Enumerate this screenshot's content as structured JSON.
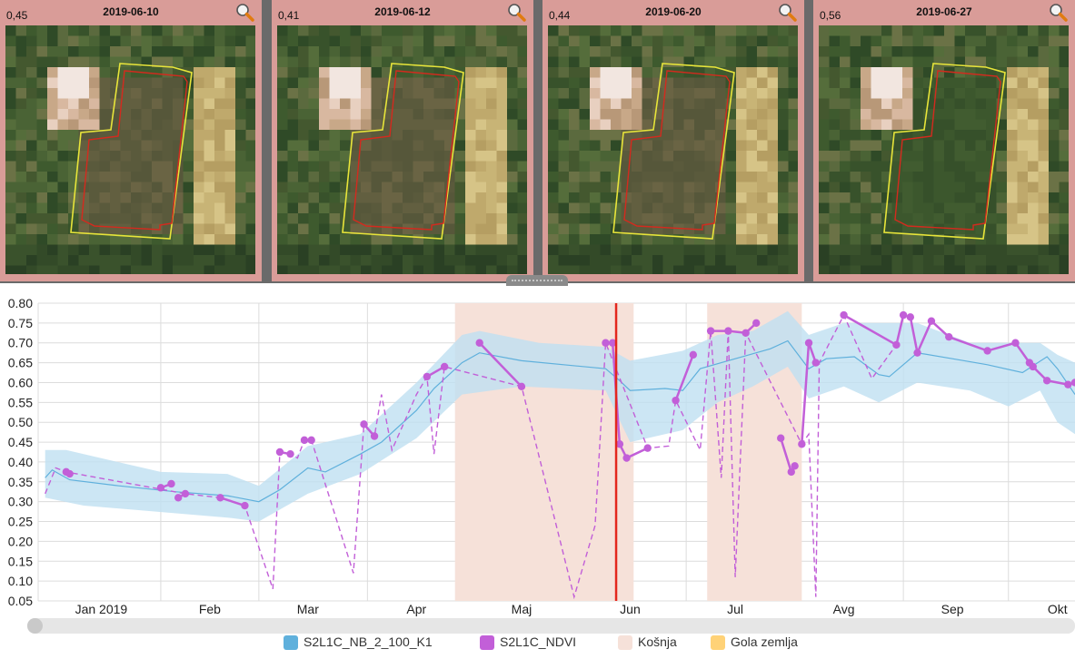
{
  "thumbnails": [
    {
      "value": "0,45",
      "date": "2019-06-10"
    },
    {
      "value": "0,41",
      "date": "2019-06-12"
    },
    {
      "value": "0,44",
      "date": "2019-06-20"
    },
    {
      "value": "0,56",
      "date": "2019-06-27"
    }
  ],
  "colors": {
    "band": "#bfe0f1",
    "mean_line": "#5fb0dc",
    "ndvi": "#c25fd8",
    "kosnja": "#f6e1d9",
    "gola_zemlja": "#ffd277",
    "selected_date_line": "#e3271e",
    "thumb_frame": "#d99c98"
  },
  "legend": [
    {
      "label": "S2L1C_NB_2_100_K1",
      "color": "#5fb0dc"
    },
    {
      "label": "S2L1C_NDVI",
      "color": "#c25fd8"
    },
    {
      "label": "Košnja",
      "color": "#f6e1d9"
    },
    {
      "label": "Gola zemlja",
      "color": "#ffd277"
    }
  ],
  "chart_data": {
    "type": "line",
    "x_axis": {
      "type": "date",
      "min": "2018-12-28",
      "max": "2019-10-20",
      "tick_labels": [
        {
          "label": "Jan 2019",
          "date": "2019-01-15"
        },
        {
          "label": "Feb",
          "date": "2019-02-15"
        },
        {
          "label": "Mar",
          "date": "2019-03-15"
        },
        {
          "label": "Apr",
          "date": "2019-04-15"
        },
        {
          "label": "Maj",
          "date": "2019-05-15"
        },
        {
          "label": "Jun",
          "date": "2019-06-15"
        },
        {
          "label": "Jul",
          "date": "2019-07-15"
        },
        {
          "label": "Avg",
          "date": "2019-08-15"
        },
        {
          "label": "Sep",
          "date": "2019-09-15"
        },
        {
          "label": "Okt",
          "date": "2019-10-15"
        }
      ],
      "gridlines": [
        "2019-02-01",
        "2019-03-01",
        "2019-04-01",
        "2019-05-01",
        "2019-06-01",
        "2019-07-01",
        "2019-08-01",
        "2019-09-01",
        "2019-10-01"
      ]
    },
    "y_axis": {
      "min": 0.05,
      "max": 0.8,
      "step": 0.05,
      "decimals": 2
    },
    "grid": true,
    "legend_position": "bottom",
    "selected_date": "2019-06-11",
    "kosnja_periods": [
      [
        "2019-04-26",
        "2019-06-16"
      ],
      [
        "2019-07-07",
        "2019-08-03"
      ]
    ],
    "mean_series": [
      [
        "2018-12-30",
        0.36
      ],
      [
        "2019-01-01",
        0.38
      ],
      [
        "2019-01-06",
        0.355
      ],
      [
        "2019-01-20",
        0.34
      ],
      [
        "2019-02-05",
        0.325
      ],
      [
        "2019-02-20",
        0.315
      ],
      [
        "2019-03-01",
        0.3
      ],
      [
        "2019-03-07",
        0.33
      ],
      [
        "2019-03-15",
        0.385
      ],
      [
        "2019-03-20",
        0.375
      ],
      [
        "2019-03-30",
        0.42
      ],
      [
        "2019-04-05",
        0.45
      ],
      [
        "2019-04-15",
        0.53
      ],
      [
        "2019-04-20",
        0.585
      ],
      [
        "2019-04-28",
        0.65
      ],
      [
        "2019-05-03",
        0.675
      ],
      [
        "2019-05-15",
        0.655
      ],
      [
        "2019-06-08",
        0.635
      ],
      [
        "2019-06-12",
        0.605
      ],
      [
        "2019-06-15",
        0.58
      ],
      [
        "2019-06-25",
        0.585
      ],
      [
        "2019-06-30",
        0.58
      ],
      [
        "2019-07-05",
        0.635
      ],
      [
        "2019-07-15",
        0.66
      ],
      [
        "2019-07-25",
        0.685
      ],
      [
        "2019-07-30",
        0.705
      ],
      [
        "2019-08-05",
        0.635
      ],
      [
        "2019-08-10",
        0.66
      ],
      [
        "2019-08-18",
        0.665
      ],
      [
        "2019-08-25",
        0.62
      ],
      [
        "2019-08-28",
        0.615
      ],
      [
        "2019-09-05",
        0.675
      ],
      [
        "2019-09-15",
        0.66
      ],
      [
        "2019-09-25",
        0.645
      ],
      [
        "2019-10-05",
        0.625
      ],
      [
        "2019-10-12",
        0.665
      ],
      [
        "2019-10-15",
        0.635
      ],
      [
        "2019-10-20",
        0.57
      ]
    ],
    "band_upper": [
      [
        "2018-12-30",
        0.43
      ],
      [
        "2019-01-05",
        0.43
      ],
      [
        "2019-02-01",
        0.375
      ],
      [
        "2019-02-20",
        0.37
      ],
      [
        "2019-03-01",
        0.34
      ],
      [
        "2019-03-15",
        0.44
      ],
      [
        "2019-03-20",
        0.45
      ],
      [
        "2019-03-30",
        0.47
      ],
      [
        "2019-04-15",
        0.6
      ],
      [
        "2019-04-28",
        0.72
      ],
      [
        "2019-05-03",
        0.73
      ],
      [
        "2019-05-20",
        0.7
      ],
      [
        "2019-06-08",
        0.69
      ],
      [
        "2019-06-15",
        0.655
      ],
      [
        "2019-06-30",
        0.68
      ],
      [
        "2019-07-10",
        0.72
      ],
      [
        "2019-07-20",
        0.73
      ],
      [
        "2019-07-30",
        0.78
      ],
      [
        "2019-08-05",
        0.72
      ],
      [
        "2019-08-15",
        0.75
      ],
      [
        "2019-08-25",
        0.75
      ],
      [
        "2019-09-05",
        0.75
      ],
      [
        "2019-09-20",
        0.7
      ],
      [
        "2019-10-10",
        0.7
      ],
      [
        "2019-10-15",
        0.67
      ],
      [
        "2019-10-20",
        0.65
      ]
    ],
    "band_lower": [
      [
        "2018-12-30",
        0.31
      ],
      [
        "2019-01-10",
        0.29
      ],
      [
        "2019-02-20",
        0.26
      ],
      [
        "2019-03-01",
        0.25
      ],
      [
        "2019-03-15",
        0.32
      ],
      [
        "2019-03-30",
        0.37
      ],
      [
        "2019-04-15",
        0.46
      ],
      [
        "2019-04-28",
        0.57
      ],
      [
        "2019-05-15",
        0.59
      ],
      [
        "2019-06-08",
        0.58
      ],
      [
        "2019-06-15",
        0.45
      ],
      [
        "2019-06-25",
        0.47
      ],
      [
        "2019-06-30",
        0.48
      ],
      [
        "2019-07-10",
        0.55
      ],
      [
        "2019-07-20",
        0.59
      ],
      [
        "2019-07-30",
        0.64
      ],
      [
        "2019-08-05",
        0.56
      ],
      [
        "2019-08-15",
        0.59
      ],
      [
        "2019-08-25",
        0.55
      ],
      [
        "2019-09-05",
        0.6
      ],
      [
        "2019-09-20",
        0.58
      ],
      [
        "2019-10-01",
        0.54
      ],
      [
        "2019-10-10",
        0.58
      ],
      [
        "2019-10-15",
        0.5
      ],
      [
        "2019-10-20",
        0.47
      ]
    ],
    "ndvi_points": [
      [
        "2019-01-05",
        0.375
      ],
      [
        "2019-01-06",
        0.37
      ],
      [
        "2019-02-01",
        0.335
      ],
      [
        "2019-02-04",
        0.345
      ],
      [
        "2019-02-06",
        0.31
      ],
      [
        "2019-02-08",
        0.32
      ],
      [
        "2019-02-18",
        0.31
      ],
      [
        "2019-02-25",
        0.29
      ],
      [
        "2019-03-07",
        0.425
      ],
      [
        "2019-03-10",
        0.42
      ],
      [
        "2019-03-14",
        0.455
      ],
      [
        "2019-03-16",
        0.455
      ],
      [
        "2019-03-31",
        0.495
      ],
      [
        "2019-04-03",
        0.465
      ],
      [
        "2019-04-18",
        0.615
      ],
      [
        "2019-04-23",
        0.64
      ],
      [
        "2019-05-03",
        0.7
      ],
      [
        "2019-05-15",
        0.59
      ],
      [
        "2019-06-08",
        0.7
      ],
      [
        "2019-06-10",
        0.7
      ],
      [
        "2019-06-12",
        0.445
      ],
      [
        "2019-06-14",
        0.41
      ],
      [
        "2019-06-20",
        0.435
      ],
      [
        "2019-06-28",
        0.555
      ],
      [
        "2019-07-03",
        0.67
      ],
      [
        "2019-07-08",
        0.73
      ],
      [
        "2019-07-13",
        0.73
      ],
      [
        "2019-07-18",
        0.725
      ],
      [
        "2019-07-21",
        0.75
      ],
      [
        "2019-07-28",
        0.46
      ],
      [
        "2019-07-31",
        0.375
      ],
      [
        "2019-08-01",
        0.39
      ],
      [
        "2019-08-03",
        0.445
      ],
      [
        "2019-08-05",
        0.7
      ],
      [
        "2019-08-07",
        0.65
      ],
      [
        "2019-08-15",
        0.77
      ],
      [
        "2019-08-30",
        0.695
      ],
      [
        "2019-09-01",
        0.77
      ],
      [
        "2019-09-03",
        0.765
      ],
      [
        "2019-09-05",
        0.675
      ],
      [
        "2019-09-09",
        0.755
      ],
      [
        "2019-09-14",
        0.715
      ],
      [
        "2019-09-25",
        0.68
      ],
      [
        "2019-10-03",
        0.7
      ],
      [
        "2019-10-07",
        0.65
      ],
      [
        "2019-10-08",
        0.64
      ],
      [
        "2019-10-12",
        0.605
      ],
      [
        "2019-10-18",
        0.595
      ],
      [
        "2019-10-20",
        0.6
      ]
    ],
    "ndvi_solid_segments": [
      [
        0,
        1
      ],
      [
        2,
        3
      ],
      [
        4,
        5
      ],
      [
        6,
        7
      ],
      [
        8,
        9
      ],
      [
        10,
        11
      ],
      [
        12,
        13
      ],
      [
        14,
        15
      ],
      [
        16,
        17
      ],
      [
        18,
        19
      ],
      [
        19,
        20
      ],
      [
        20,
        21
      ],
      [
        21,
        22
      ],
      [
        23,
        24
      ],
      [
        25,
        26
      ],
      [
        26,
        27
      ],
      [
        27,
        28
      ],
      [
        29,
        30
      ],
      [
        30,
        31
      ],
      [
        32,
        33
      ],
      [
        33,
        34
      ],
      [
        35,
        36
      ],
      [
        36,
        37
      ],
      [
        38,
        39
      ],
      [
        39,
        40
      ],
      [
        40,
        41
      ],
      [
        41,
        42
      ],
      [
        42,
        43
      ],
      [
        43,
        44
      ],
      [
        44,
        45
      ],
      [
        45,
        46
      ],
      [
        46,
        47
      ],
      [
        47,
        48
      ]
    ],
    "ndvi_dashed_path": [
      [
        "2018-12-30",
        0.32
      ],
      [
        "2019-01-02",
        0.385
      ],
      [
        "2019-01-05",
        0.375
      ],
      [
        "2019-02-08",
        0.32
      ],
      [
        "2019-02-18",
        0.31
      ],
      [
        "2019-02-25",
        0.29
      ],
      [
        "2019-03-05",
        0.08
      ],
      [
        "2019-03-07",
        0.425
      ],
      [
        "2019-03-10",
        0.42
      ],
      [
        "2019-03-12",
        0.41
      ],
      [
        "2019-03-14",
        0.455
      ],
      [
        "2019-03-16",
        0.455
      ],
      [
        "2019-03-28",
        0.12
      ],
      [
        "2019-03-31",
        0.495
      ],
      [
        "2019-04-03",
        0.465
      ],
      [
        "2019-04-05",
        0.57
      ],
      [
        "2019-04-08",
        0.43
      ],
      [
        "2019-04-15",
        0.57
      ],
      [
        "2019-04-18",
        0.615
      ],
      [
        "2019-04-20",
        0.42
      ],
      [
        "2019-04-23",
        0.64
      ],
      [
        "2019-05-15",
        0.59
      ],
      [
        "2019-05-30",
        0.06
      ],
      [
        "2019-06-05",
        0.24
      ],
      [
        "2019-06-08",
        0.7
      ],
      [
        "2019-06-20",
        0.435
      ],
      [
        "2019-06-26",
        0.44
      ],
      [
        "2019-06-28",
        0.555
      ],
      [
        "2019-07-05",
        0.43
      ],
      [
        "2019-07-08",
        0.73
      ],
      [
        "2019-07-11",
        0.36
      ],
      [
        "2019-07-13",
        0.73
      ],
      [
        "2019-07-15",
        0.11
      ],
      [
        "2019-07-18",
        0.725
      ],
      [
        "2019-08-03",
        0.445
      ],
      [
        "2019-08-05",
        0.47
      ],
      [
        "2019-08-07",
        0.06
      ],
      [
        "2019-08-08",
        0.65
      ],
      [
        "2019-08-15",
        0.77
      ],
      [
        "2019-08-23",
        0.61
      ],
      [
        "2019-08-30",
        0.695
      ]
    ]
  }
}
